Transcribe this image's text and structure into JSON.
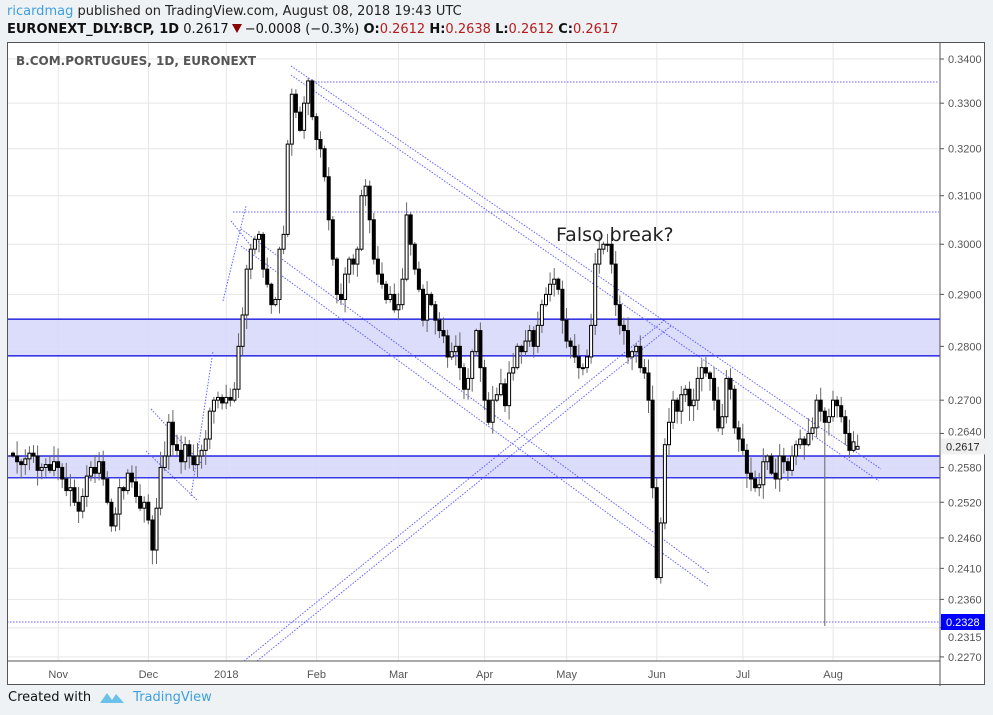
{
  "header": {
    "user": "ricardmag",
    "published": "published on TradingView.com, August 08, 2018 19:43 UTC",
    "symbol": "EURONEXT_DLY:BCP, 1D",
    "last": "0.2617",
    "change": "−0.0008 (−0.3%)",
    "o_label": "O:",
    "o": "0.2612",
    "h_label": "H:",
    "h": "0.2638",
    "l_label": "L:",
    "l": "0.2612",
    "c_label": "C:",
    "c": "0.2617",
    "direction_icon": "triangle-down-icon"
  },
  "chart_data": {
    "type": "candlestick",
    "title": "B.COM.PORTUGUES, 1D, EURONEXT",
    "y_scale": "log",
    "ylim": [
      0.2255,
      0.343
    ],
    "y_ticks": [
      "0.3400",
      "0.3300",
      "0.3200",
      "0.3100",
      "0.3000",
      "0.2900",
      "0.2800",
      "0.2700",
      "0.2640",
      "0.2580",
      "0.2520",
      "0.2460",
      "0.2410",
      "0.2360",
      "0.2315",
      "0.2270"
    ],
    "x_ticks": [
      "Nov",
      "Dec",
      "2018",
      "Feb",
      "Mar",
      "Apr",
      "May",
      "Jun",
      "Jul",
      "Aug"
    ],
    "last_price_label": "0.2617",
    "marked_low_label": "0.2328",
    "annotation": "Falso break?",
    "grid": true,
    "colors": {
      "up": "#ffffff",
      "down": "#000000",
      "lines": "#3333ff",
      "zone_fill": "#d8d8fb",
      "zone_border": "#0000dd",
      "low_label_bg": "#0000ff"
    },
    "zones": [
      [
        0.2782,
        0.2852
      ],
      [
        0.2562,
        0.26
      ]
    ],
    "levels": [
      0.3345,
      0.3065,
      0.2328
    ],
    "closes": [
      0.26,
      0.259,
      0.2585,
      0.2595,
      0.2605,
      0.26,
      0.2575,
      0.258,
      0.2585,
      0.2575,
      0.259,
      0.258,
      0.256,
      0.254,
      0.2545,
      0.252,
      0.2505,
      0.253,
      0.2565,
      0.258,
      0.257,
      0.259,
      0.256,
      0.252,
      0.248,
      0.25,
      0.2545,
      0.254,
      0.257,
      0.2555,
      0.253,
      0.251,
      0.252,
      0.249,
      0.244,
      0.251,
      0.258,
      0.26,
      0.266,
      0.262,
      0.261,
      0.259,
      0.262,
      0.26,
      0.2585,
      0.26,
      0.261,
      0.263,
      0.268,
      0.27,
      0.2705,
      0.2695,
      0.2705,
      0.27,
      0.272,
      0.28,
      0.286,
      0.295,
      0.299,
      0.301,
      0.302,
      0.295,
      0.292,
      0.288,
      0.289,
      0.299,
      0.302,
      0.321,
      0.332,
      0.328,
      0.324,
      0.33,
      0.335,
      0.327,
      0.322,
      0.32,
      0.314,
      0.305,
      0.297,
      0.29,
      0.289,
      0.294,
      0.297,
      0.296,
      0.299,
      0.31,
      0.312,
      0.305,
      0.297,
      0.294,
      0.292,
      0.289,
      0.29,
      0.287,
      0.288,
      0.293,
      0.306,
      0.3,
      0.295,
      0.291,
      0.285,
      0.29,
      0.288,
      0.285,
      0.283,
      0.282,
      0.278,
      0.279,
      0.28,
      0.276,
      0.272,
      0.274,
      0.279,
      0.283,
      0.276,
      0.27,
      0.266,
      0.27,
      0.271,
      0.273,
      0.269,
      0.275,
      0.276,
      0.28,
      0.279,
      0.281,
      0.283,
      0.28,
      0.284,
      0.288,
      0.29,
      0.292,
      0.293,
      0.291,
      0.285,
      0.281,
      0.28,
      0.278,
      0.276,
      0.276,
      0.278,
      0.284,
      0.296,
      0.299,
      0.3,
      0.3,
      0.296,
      0.288,
      0.284,
      0.283,
      0.278,
      0.279,
      0.28,
      0.276,
      0.275,
      0.27,
      0.2545,
      0.2395,
      0.2485,
      0.262,
      0.266,
      0.27,
      0.268,
      0.271,
      0.272,
      0.269,
      0.27,
      0.274,
      0.276,
      0.275,
      0.274,
      0.27,
      0.265,
      0.267,
      0.274,
      0.272,
      0.265,
      0.263,
      0.261,
      0.257,
      0.256,
      0.2545,
      0.255,
      0.259,
      0.26,
      0.257,
      0.256,
      0.26,
      0.259,
      0.2575,
      0.26,
      0.262,
      0.263,
      0.262,
      0.264,
      0.265,
      0.27,
      0.268,
      0.266,
      0.267,
      0.27,
      0.269,
      0.267,
      0.264,
      0.261,
      0.2625,
      0.2617
    ]
  },
  "footer": {
    "created_with": "Created with",
    "brand": "TradingView",
    "logo_icon": "tradingview-logo-icon"
  }
}
